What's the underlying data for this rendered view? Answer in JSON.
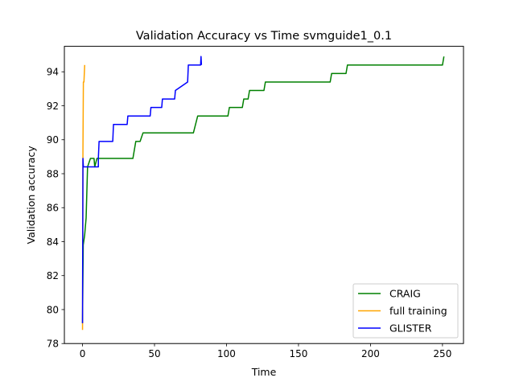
{
  "chart_data": {
    "type": "line",
    "title": "Validation Accuracy vs Time svmguide1_0.1",
    "xlabel": "Time",
    "ylabel": "Validation accuracy",
    "xlim": [
      -12.6,
      264.6
    ],
    "ylim": [
      78,
      95.5
    ],
    "x_ticks": [
      0,
      50,
      100,
      150,
      200,
      250
    ],
    "y_ticks": [
      78,
      80,
      82,
      84,
      86,
      88,
      90,
      92,
      94
    ],
    "grid": false,
    "legend_position": "lower-right",
    "series": [
      {
        "name": "CRAIG",
        "color": "#008000",
        "points": [
          [
            0,
            79.2
          ],
          [
            0.5,
            83.8
          ],
          [
            1.5,
            84.4
          ],
          [
            2.5,
            85.4
          ],
          [
            3.5,
            88.4
          ],
          [
            5.5,
            88.9
          ],
          [
            8,
            88.9
          ],
          [
            8.5,
            88.4
          ],
          [
            10,
            88.9
          ],
          [
            35,
            88.9
          ],
          [
            37,
            89.9
          ],
          [
            40,
            89.9
          ],
          [
            42,
            90.4
          ],
          [
            77,
            90.4
          ],
          [
            80,
            91.4
          ],
          [
            101,
            91.4
          ],
          [
            102,
            91.9
          ],
          [
            111,
            91.9
          ],
          [
            112,
            92.4
          ],
          [
            115,
            92.4
          ],
          [
            116,
            92.9
          ],
          [
            126,
            92.9
          ],
          [
            127,
            93.4
          ],
          [
            172,
            93.4
          ],
          [
            173,
            93.9
          ],
          [
            183,
            93.9
          ],
          [
            184,
            94.4
          ],
          [
            250,
            94.4
          ],
          [
            251,
            94.9
          ]
        ]
      },
      {
        "name": "full training",
        "color": "#FFA500",
        "points": [
          [
            0,
            78.8
          ],
          [
            0.3,
            89.4
          ],
          [
            0.6,
            93.4
          ],
          [
            1,
            93.4
          ],
          [
            1.5,
            94.4
          ]
        ]
      },
      {
        "name": "GLISTER",
        "color": "#0000FF",
        "points": [
          [
            0,
            79.2
          ],
          [
            0.3,
            88.9
          ],
          [
            0.6,
            88.4
          ],
          [
            11,
            88.4
          ],
          [
            11,
            88.9
          ],
          [
            11.5,
            89.9
          ],
          [
            21,
            89.9
          ],
          [
            21.5,
            90.9
          ],
          [
            31,
            90.9
          ],
          [
            31.5,
            91.4
          ],
          [
            47,
            91.4
          ],
          [
            47.5,
            91.9
          ],
          [
            55,
            91.9
          ],
          [
            55.5,
            92.4
          ],
          [
            64,
            92.4
          ],
          [
            64.5,
            92.9
          ],
          [
            73,
            93.4
          ],
          [
            73.5,
            94.4
          ],
          [
            82,
            94.4
          ],
          [
            82.3,
            94.9
          ],
          [
            82.6,
            94.4
          ]
        ]
      }
    ]
  }
}
